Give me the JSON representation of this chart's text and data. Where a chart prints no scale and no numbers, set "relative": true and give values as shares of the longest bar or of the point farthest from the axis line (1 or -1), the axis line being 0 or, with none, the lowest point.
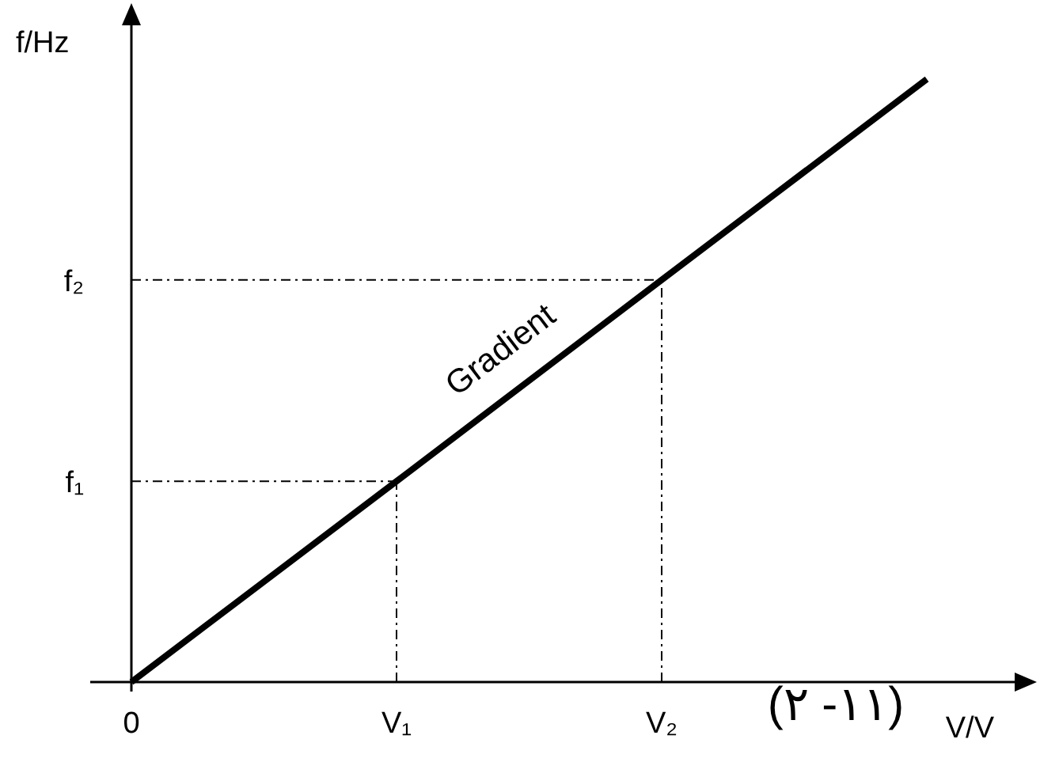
{
  "chart_data": {
    "type": "line",
    "relative": true,
    "xlabel": "V/V",
    "ylabel": "f/Hz",
    "categories": [
      "0",
      "V₁",
      "V₂",
      null
    ],
    "series": [
      {
        "color": "#000000",
        "values": [
          0,
          0.333,
          0.667,
          1
        ]
      }
    ],
    "ref_lines": [
      {
        "axis": "x",
        "value": "V₁"
      },
      {
        "axis": "x",
        "value": "V₂"
      },
      {
        "axis": "y",
        "value": 0.333,
        "label": "f₁"
      },
      {
        "axis": "y",
        "value": 0.667,
        "label": "f₂"
      }
    ],
    "annotations": [
      "Gradient",
      "(٢ -١١)"
    ],
    "marker": "none",
    "line_style": "solid"
  }
}
